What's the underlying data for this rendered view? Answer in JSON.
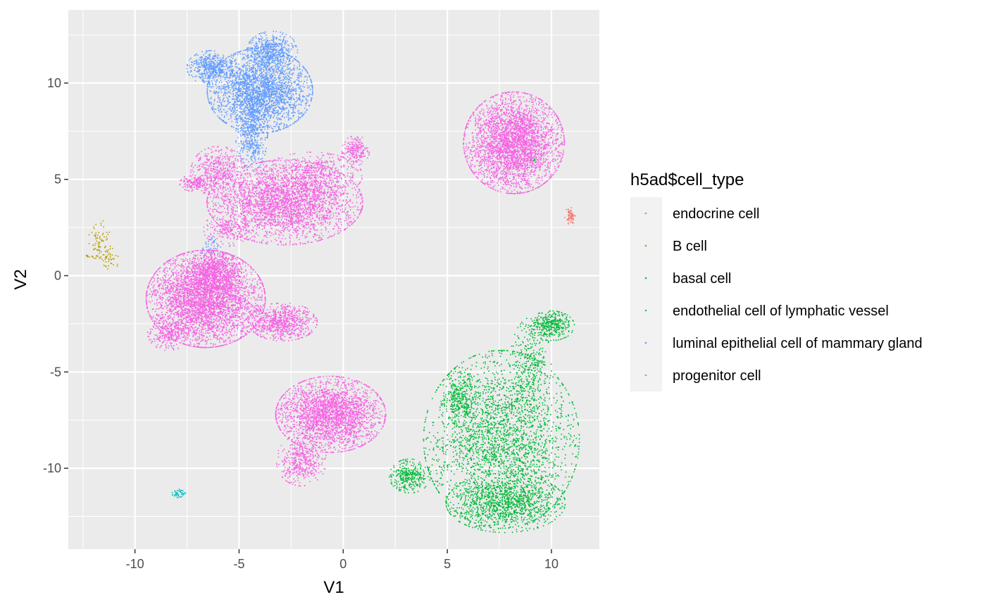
{
  "chart_data": {
    "type": "scatter",
    "title": "",
    "xlabel": "V1",
    "ylabel": "V2",
    "xlim": [
      -13.2,
      12.3
    ],
    "ylim": [
      -14.2,
      13.8
    ],
    "x_ticks": [
      -10,
      -5,
      0,
      5,
      10
    ],
    "y_ticks": [
      -10,
      -5,
      0,
      5,
      10
    ],
    "grid": true,
    "legend": {
      "title": "h5ad$cell_type",
      "placement": "right"
    },
    "series": [
      {
        "name": "endocrine cell",
        "color": "#F8766D",
        "clusters": [
          {
            "cx": 10.9,
            "cy": 3.1,
            "sx": 0.12,
            "sy": 0.2,
            "n": 60
          }
        ]
      },
      {
        "name": "B cell",
        "color": "#B79F00",
        "clusters": [
          {
            "cx": -11.7,
            "cy": 1.8,
            "sx": 0.25,
            "sy": 0.5,
            "n": 70
          },
          {
            "cx": -11.3,
            "cy": 0.9,
            "sx": 0.3,
            "sy": 0.25,
            "n": 50
          },
          {
            "cx": -12.3,
            "cy": 1.0,
            "sx": 0.05,
            "sy": 0.05,
            "n": 8
          }
        ]
      },
      {
        "name": "basal cell",
        "color": "#00BA38",
        "clusters": [
          {
            "cx": 7.6,
            "cy": -8.5,
            "sx": 1.7,
            "sy": 2.1,
            "n": 2600
          },
          {
            "cx": 7.8,
            "cy": -11.8,
            "sx": 1.3,
            "sy": 0.7,
            "n": 1100
          },
          {
            "cx": 3.2,
            "cy": -10.4,
            "sx": 0.45,
            "sy": 0.4,
            "n": 320
          },
          {
            "cx": 5.6,
            "cy": -6.3,
            "sx": 0.35,
            "sy": 0.7,
            "n": 300
          },
          {
            "cx": 10.0,
            "cy": -2.6,
            "sx": 0.5,
            "sy": 0.35,
            "n": 380
          },
          {
            "cx": 9.0,
            "cy": -4.6,
            "sx": 0.45,
            "sy": 1.1,
            "n": 320
          },
          {
            "cx": 9.1,
            "cy": 6.0,
            "sx": 0.12,
            "sy": 0.1,
            "n": 10
          }
        ]
      },
      {
        "name": "endothelial cell of lymphatic vessel",
        "color": "#00BFC4",
        "clusters": [
          {
            "cx": -7.9,
            "cy": -11.3,
            "sx": 0.15,
            "sy": 0.1,
            "n": 45
          }
        ]
      },
      {
        "name": "luminal epithelial cell of mammary gland",
        "color": "#619CFF",
        "clusters": [
          {
            "cx": -4.0,
            "cy": 9.6,
            "sx": 1.15,
            "sy": 1.0,
            "n": 2600
          },
          {
            "cx": -3.4,
            "cy": 11.7,
            "sx": 0.55,
            "sy": 0.45,
            "n": 500
          },
          {
            "cx": -6.4,
            "cy": 10.8,
            "sx": 0.5,
            "sy": 0.4,
            "n": 450
          },
          {
            "cx": -4.4,
            "cy": 7.4,
            "sx": 0.35,
            "sy": 0.9,
            "n": 500
          },
          {
            "cx": -6.3,
            "cy": 1.5,
            "sx": 0.25,
            "sy": 0.25,
            "n": 40
          }
        ]
      },
      {
        "name": "progenitor cell",
        "color": "#F564E3",
        "clusters": [
          {
            "cx": 8.2,
            "cy": 6.9,
            "sx": 1.1,
            "sy": 1.2,
            "n": 3400
          },
          {
            "cx": -2.8,
            "cy": 3.8,
            "sx": 1.7,
            "sy": 1.0,
            "n": 3000
          },
          {
            "cx": -6.0,
            "cy": 5.4,
            "sx": 0.6,
            "sy": 0.6,
            "n": 500
          },
          {
            "cx": -7.1,
            "cy": 4.8,
            "sx": 0.35,
            "sy": 0.2,
            "n": 180
          },
          {
            "cx": -1.5,
            "cy": 5.2,
            "sx": 1.1,
            "sy": 0.55,
            "n": 500
          },
          {
            "cx": 0.6,
            "cy": 6.5,
            "sx": 0.3,
            "sy": 0.35,
            "n": 220
          },
          {
            "cx": -6.6,
            "cy": -1.2,
            "sx": 1.3,
            "sy": 1.15,
            "n": 4000
          },
          {
            "cx": -6.2,
            "cy": 0.2,
            "sx": 0.6,
            "sy": 0.5,
            "n": 700
          },
          {
            "cx": -8.4,
            "cy": -3.0,
            "sx": 0.45,
            "sy": 0.4,
            "n": 260
          },
          {
            "cx": -2.9,
            "cy": -2.4,
            "sx": 0.75,
            "sy": 0.45,
            "n": 800
          },
          {
            "cx": -5.6,
            "cy": 2.4,
            "sx": 0.5,
            "sy": 0.4,
            "n": 200
          },
          {
            "cx": -0.6,
            "cy": -7.2,
            "sx": 1.2,
            "sy": 0.9,
            "n": 2600
          },
          {
            "cx": -2.0,
            "cy": -9.6,
            "sx": 0.55,
            "sy": 0.6,
            "n": 450
          }
        ]
      }
    ]
  }
}
